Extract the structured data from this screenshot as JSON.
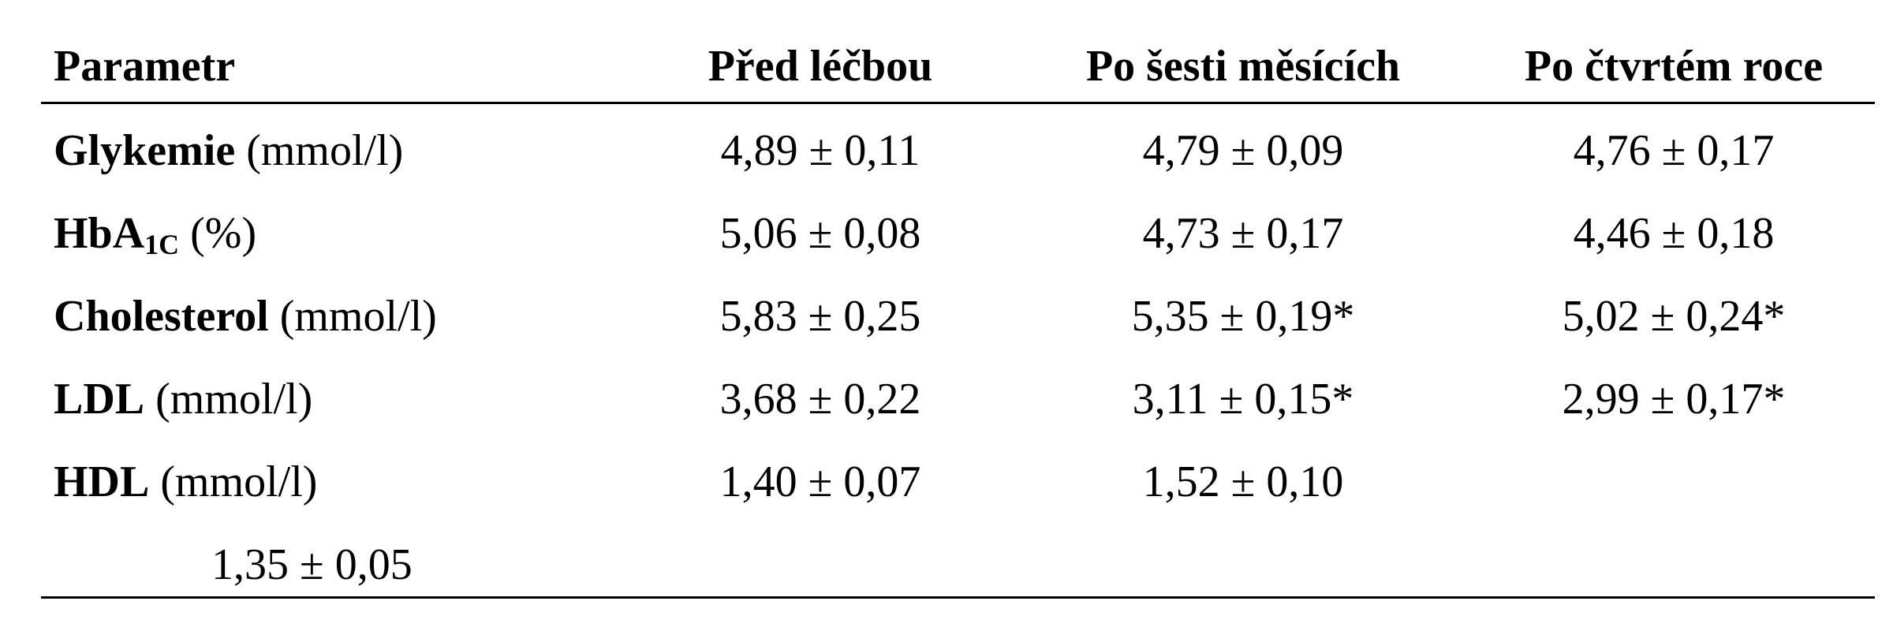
{
  "table": {
    "headers": [
      "Parametr",
      "Před léčbou",
      "Po šesti měsících",
      "Po čtvrtém roce"
    ],
    "rows": [
      {
        "name": "Glykemie",
        "unit": "(mmol/l)",
        "before": "4,89 ± 0,11",
        "six_months": "4,79 ± 0,09",
        "fourth_year": "4,76 ± 0,17"
      },
      {
        "name": "HbA",
        "name_sub": "1C",
        "unit": "(%)",
        "before": "5,06 ± 0,08",
        "six_months": "4,73 ± 0,17",
        "fourth_year": "4,46 ± 0,18"
      },
      {
        "name": "Cholesterol",
        "unit": "(mmol/l)",
        "before": "5,83 ± 0,25",
        "six_months": "5,35 ± 0,19*",
        "fourth_year": "5,02 ± 0,24*"
      },
      {
        "name": "LDL",
        "unit": "(mmol/l)",
        "before": "3,68 ± 0,22",
        "six_months": "3,11 ± 0,15*",
        "fourth_year": "2,99 ± 0,17*"
      },
      {
        "name": "HDL",
        "unit": "(mmol/l)",
        "before": "1,40 ± 0,07",
        "six_months": "1,52 ± 0,10",
        "fourth_year": "1,35 ± 0,05"
      }
    ]
  }
}
